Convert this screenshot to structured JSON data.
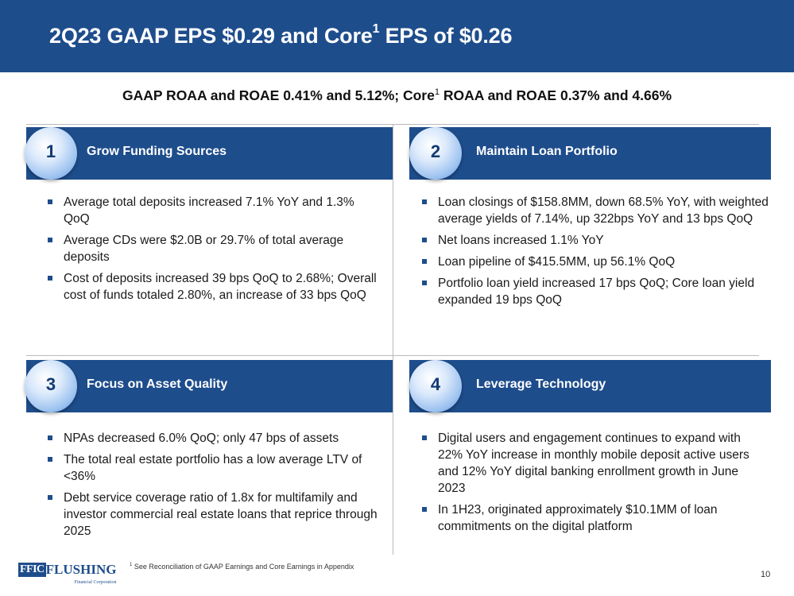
{
  "header": {
    "title_pre": "2Q23 GAAP EPS $0.29 and Core",
    "title_sup": "1",
    "title_post": " EPS of $0.26"
  },
  "subtitle": {
    "pre": "GAAP ROAA and ROAE 0.41% and 5.12%; Core",
    "sup": "1",
    "post": " ROAA and ROAE 0.37% and 4.66%"
  },
  "quadrants": [
    {
      "number": "1",
      "title": "Grow Funding Sources",
      "bullets": [
        "Average total deposits increased 7.1% YoY and 1.3% QoQ",
        "Average CDs were $2.0B or 29.7% of total average deposits",
        "Cost of deposits increased 39 bps QoQ to 2.68%; Overall cost of funds totaled 2.80%, an increase of 33 bps QoQ"
      ]
    },
    {
      "number": "2",
      "title": "Maintain Loan Portfolio",
      "bullets": [
        "Loan closings of $158.8MM, down 68.5% YoY, with weighted average yields of 7.14%, up 322bps YoY and 13 bps QoQ",
        "Net loans increased 1.1% YoY",
        "Loan pipeline of $415.5MM, up 56.1% QoQ",
        "Portfolio loan yield increased 17 bps QoQ; Core loan yield expanded 19 bps QoQ"
      ]
    },
    {
      "number": "3",
      "title": "Focus on Asset Quality",
      "bullets": [
        "NPAs decreased 6.0% QoQ; only 47 bps of assets",
        "The total real estate portfolio has a low average LTV of <36%",
        "Debt service coverage ratio of 1.8x for multifamily and investor commercial real estate loans that reprice through 2025"
      ]
    },
    {
      "number": "4",
      "title": "Leverage Technology",
      "bullets": [
        "Digital users and engagement continues to expand with 22% YoY increase in monthly mobile deposit active users and 12% YoY digital banking enrollment growth in June 2023",
        "In 1H23, originated approximately $10.1MM of loan commitments on the digital platform"
      ]
    }
  ],
  "footer": {
    "logo_box": "FFIC",
    "logo_word": "FLUSHING",
    "logo_sub": "Financial Corporation",
    "footnote_sup": "1",
    "footnote": " See Reconciliation of GAAP Earnings and Core Earnings in Appendix",
    "page_number": "10"
  },
  "colors": {
    "brand_blue": "#1e4d8c",
    "divider": "#b9b9b9"
  }
}
